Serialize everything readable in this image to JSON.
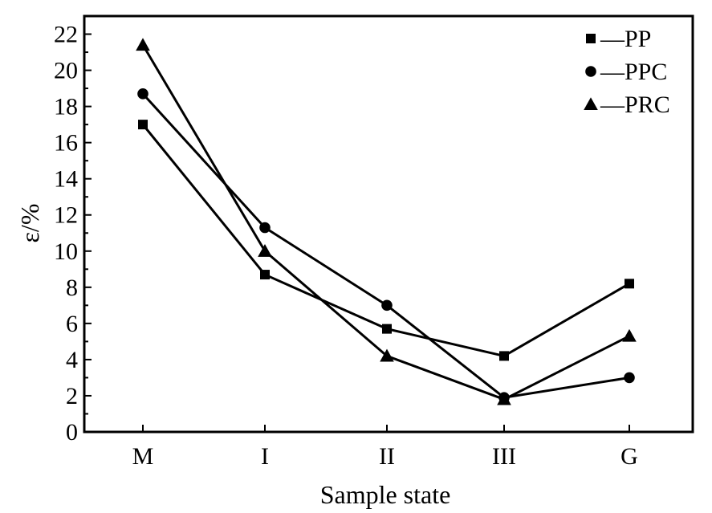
{
  "chart_data": {
    "type": "line",
    "xlabel": "Sample state",
    "ylabel": "ε/%",
    "categories": [
      "M",
      "I",
      "II",
      "III",
      "G"
    ],
    "ylim": [
      0,
      23
    ],
    "yticks": [
      "0",
      "2",
      "4",
      "6",
      "8",
      "10",
      "12",
      "14",
      "16",
      "18",
      "20",
      "22"
    ],
    "grid": false,
    "legend_position": "top-right",
    "series": [
      {
        "name": "—PP",
        "marker": "square",
        "values": [
          17.0,
          8.7,
          5.7,
          4.2,
          8.2
        ]
      },
      {
        "name": "—PPC",
        "marker": "circle",
        "values": [
          18.7,
          11.3,
          7.0,
          1.9,
          3.0
        ]
      },
      {
        "name": "—PRC",
        "marker": "triangle",
        "values": [
          21.4,
          10.0,
          4.2,
          1.8,
          5.3
        ]
      }
    ],
    "colors": {
      "line": "#000000",
      "background": "#ffffff"
    }
  }
}
